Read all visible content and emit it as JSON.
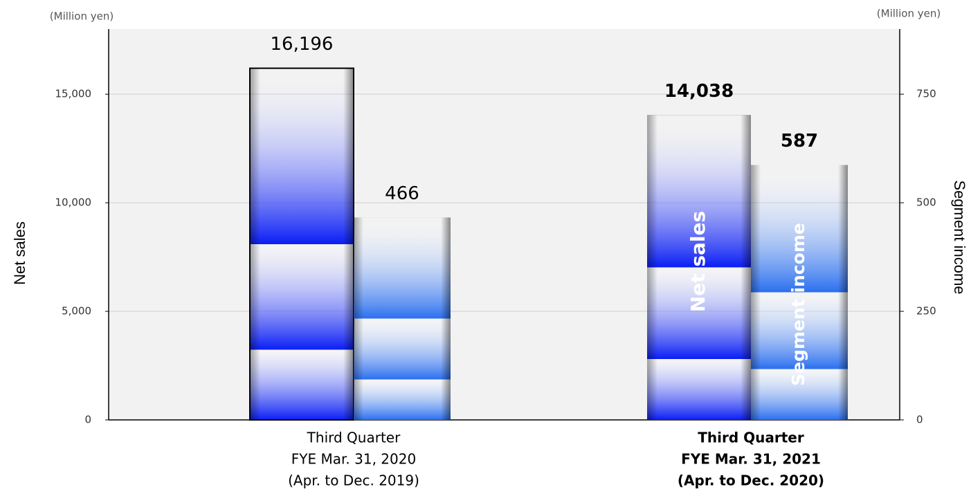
{
  "chart_data": {
    "type": "bar",
    "y_unit": "(Million yen)",
    "y2_unit": "(Million yen)",
    "y_label": "Net sales",
    "y2_label": "Segment income",
    "categories": [
      [
        "Third Quarter",
        "FYE Mar. 31, 2020",
        "(Apr. to Dec. 2019)"
      ],
      [
        "Third Quarter",
        "FYE Mar. 31, 2021",
        "(Apr. to Dec. 2020)"
      ]
    ],
    "series": [
      {
        "name": "Net sales",
        "color": "#0a1ef5",
        "values": [
          16196,
          14038
        ],
        "value_labels": [
          "16,196",
          "14,038"
        ]
      },
      {
        "name": "Segment income",
        "color": "#2a6ff0",
        "axis": "y2",
        "values": [
          466,
          587
        ]
      }
    ],
    "ylim": [
      0,
      18000
    ],
    "yticks": [
      0,
      {
        "value": 5000,
        "label": "5,000"
      },
      {
        "value": 10000,
        "label": "10,000"
      },
      {
        "value": 15000,
        "label": "15,000"
      }
    ],
    "y2lim": [
      0,
      900
    ],
    "y2ticks": [
      0,
      250,
      500,
      750
    ],
    "grid": true
  }
}
